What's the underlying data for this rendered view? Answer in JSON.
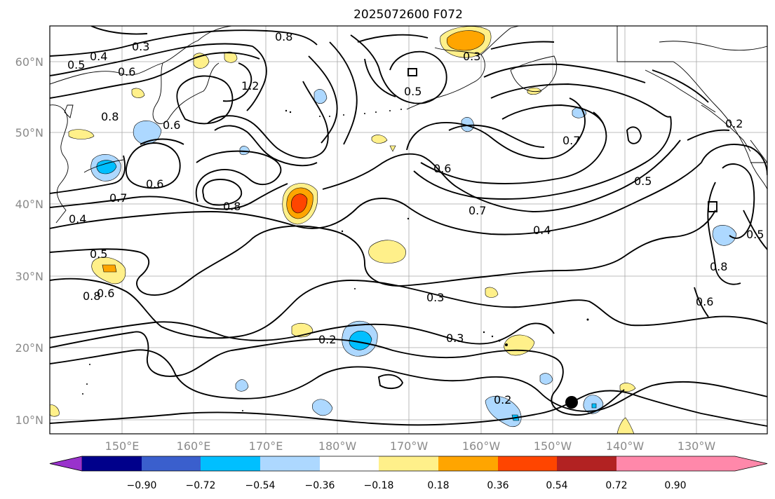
{
  "title": "2025072600 F072",
  "lat_ticks": [
    "60°N",
    "50°N",
    "40°N",
    "30°N",
    "20°N",
    "10°N"
  ],
  "lon_ticks": [
    "150°E",
    "160°E",
    "170°E",
    "180°W",
    "170°W",
    "160°W",
    "150°W",
    "140°W",
    "130°W"
  ],
  "colorbar": {
    "colors": [
      "#9932cc",
      "#00008b",
      "#3a5fcd",
      "#00bfff",
      "#add8ff",
      "#ffffff",
      "#fff08a",
      "#ffa500",
      "#ff4500",
      "#b22222",
      "#ff88aa"
    ],
    "labels": [
      "−0.90",
      "−0.72",
      "−0.54",
      "−0.36",
      "−0.18",
      "0.18",
      "0.36",
      "0.54",
      "0.72",
      "0.90"
    ]
  },
  "contour_labels": [
    {
      "text": "0.3"
    },
    {
      "text": "0.4"
    },
    {
      "text": "0.5"
    },
    {
      "text": "0.6"
    },
    {
      "text": "0.8"
    },
    {
      "text": "1.2"
    },
    {
      "text": "0.8"
    },
    {
      "text": "0.6"
    },
    {
      "text": "0.6"
    },
    {
      "text": "0.7"
    },
    {
      "text": "0.4"
    },
    {
      "text": "0.8"
    },
    {
      "text": "0.5"
    },
    {
      "text": "0.8"
    },
    {
      "text": "0.6"
    },
    {
      "text": "0.5"
    },
    {
      "text": "0.6"
    },
    {
      "text": "0.7"
    },
    {
      "text": "0.4"
    },
    {
      "text": "0.7"
    },
    {
      "text": "0.5"
    },
    {
      "text": "0.3"
    },
    {
      "text": "0.3"
    },
    {
      "text": "0.2"
    },
    {
      "text": "0.2"
    },
    {
      "text": "0.2"
    },
    {
      "text": "0.8"
    },
    {
      "text": "0.6"
    },
    {
      "text": "0.5"
    },
    {
      "text": "0.3"
    }
  ]
}
